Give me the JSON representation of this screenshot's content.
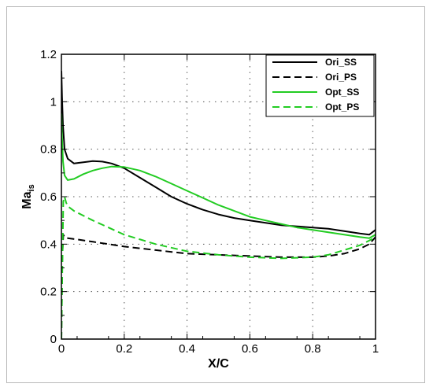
{
  "chart_data": {
    "type": "line",
    "xlabel": "X/C",
    "ylabel": "Ma",
    "ylabel_subscript": "is",
    "xlim": [
      0,
      1
    ],
    "ylim": [
      0,
      1.2
    ],
    "xticks": [
      "0",
      "0.2",
      "0.4",
      "0.6",
      "0.8",
      "1"
    ],
    "yticks": [
      "0",
      "0.2",
      "0.4",
      "0.6",
      "0.8",
      "1",
      "1.2"
    ],
    "grid": true,
    "legend_position": "top-right",
    "colors": {
      "ori": "#000000",
      "opt": "#22cc22"
    },
    "series": [
      {
        "name": "Ori_SS",
        "color": "#000000",
        "dash": "solid",
        "x": [
          0,
          0.002,
          0.005,
          0.01,
          0.02,
          0.04,
          0.07,
          0.1,
          0.13,
          0.16,
          0.2,
          0.25,
          0.3,
          0.35,
          0.4,
          0.45,
          0.5,
          0.55,
          0.6,
          0.65,
          0.7,
          0.75,
          0.8,
          0.85,
          0.9,
          0.95,
          0.98,
          1.0
        ],
        "y": [
          1.13,
          1.02,
          0.9,
          0.8,
          0.76,
          0.74,
          0.745,
          0.75,
          0.748,
          0.74,
          0.72,
          0.68,
          0.64,
          0.6,
          0.57,
          0.545,
          0.525,
          0.51,
          0.5,
          0.49,
          0.48,
          0.475,
          0.47,
          0.465,
          0.455,
          0.445,
          0.44,
          0.46
        ]
      },
      {
        "name": "Ori_PS",
        "color": "#000000",
        "dash": "dashed",
        "x": [
          0,
          0.003,
          0.006,
          0.01,
          0.015,
          0.02,
          0.05,
          0.1,
          0.2,
          0.3,
          0.4,
          0.5,
          0.6,
          0.7,
          0.8,
          0.85,
          0.9,
          0.95,
          0.98,
          1.0
        ],
        "y": [
          0.0,
          0.35,
          0.44,
          0.43,
          0.425,
          0.425,
          0.42,
          0.41,
          0.39,
          0.375,
          0.36,
          0.355,
          0.35,
          0.345,
          0.345,
          0.35,
          0.36,
          0.38,
          0.4,
          0.43
        ]
      },
      {
        "name": "Opt_SS",
        "color": "#22cc22",
        "dash": "solid",
        "x": [
          0,
          0.002,
          0.005,
          0.01,
          0.02,
          0.04,
          0.07,
          0.1,
          0.13,
          0.16,
          0.2,
          0.25,
          0.3,
          0.35,
          0.4,
          0.45,
          0.5,
          0.55,
          0.6,
          0.65,
          0.7,
          0.75,
          0.8,
          0.85,
          0.9,
          0.95,
          0.98,
          1.0
        ],
        "y": [
          0.95,
          0.85,
          0.75,
          0.69,
          0.67,
          0.675,
          0.695,
          0.71,
          0.72,
          0.727,
          0.725,
          0.71,
          0.685,
          0.655,
          0.625,
          0.595,
          0.565,
          0.54,
          0.515,
          0.5,
          0.485,
          0.47,
          0.46,
          0.45,
          0.44,
          0.43,
          0.425,
          0.44
        ]
      },
      {
        "name": "Opt_PS",
        "color": "#22cc22",
        "dash": "dashed",
        "x": [
          0,
          0.003,
          0.006,
          0.01,
          0.015,
          0.02,
          0.04,
          0.07,
          0.1,
          0.15,
          0.2,
          0.3,
          0.4,
          0.5,
          0.6,
          0.7,
          0.8,
          0.85,
          0.9,
          0.95,
          0.98,
          1.0
        ],
        "y": [
          0.0,
          0.3,
          0.58,
          0.6,
          0.575,
          0.56,
          0.54,
          0.52,
          0.5,
          0.47,
          0.44,
          0.4,
          0.37,
          0.355,
          0.345,
          0.34,
          0.345,
          0.355,
          0.375,
          0.395,
          0.415,
          0.43
        ]
      }
    ]
  }
}
